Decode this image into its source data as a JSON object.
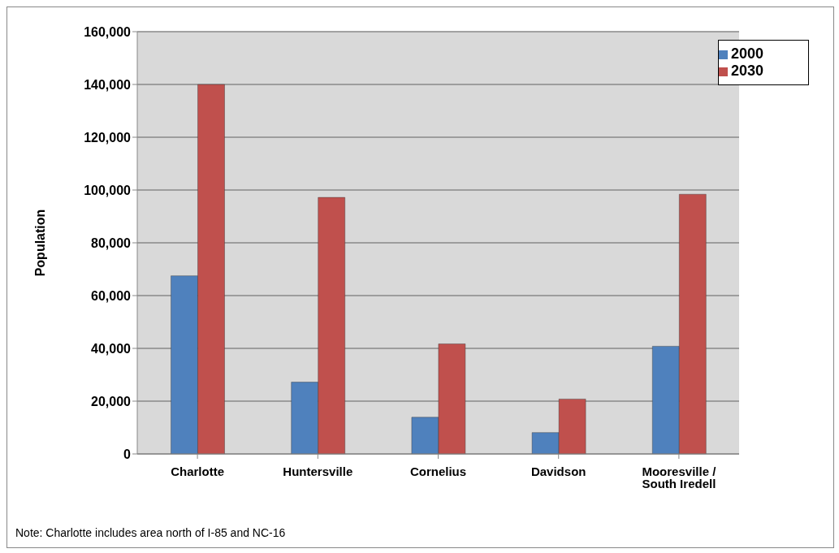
{
  "chart_data": {
    "type": "bar",
    "ylabel": "Population",
    "categories": [
      "Charlotte",
      "Huntersville",
      "Cornelius",
      "Davidson",
      "Mooresville / South Iredell"
    ],
    "series": [
      {
        "name": "2000",
        "color": "#4f81bd",
        "values": [
          67500,
          27200,
          13900,
          8100,
          40800
        ]
      },
      {
        "name": "2030",
        "color": "#c0504d",
        "values": [
          140000,
          97200,
          41700,
          20800,
          98400
        ]
      }
    ],
    "ylim": [
      0,
      160000
    ],
    "yticks": [
      0,
      {
        "value": 20000,
        "label": "20,000"
      },
      {
        "value": 40000,
        "label": "40,000"
      },
      {
        "value": 60000,
        "label": "60,000"
      },
      {
        "value": 80000,
        "label": "80,000"
      },
      {
        "value": 100000,
        "label": "100,000"
      },
      {
        "value": 120000,
        "label": "120,000"
      },
      {
        "value": 140000,
        "label": "140,000"
      },
      {
        "value": 160000,
        "label": "160,000"
      }
    ],
    "grid": "y",
    "legend": "top right",
    "annotations": [
      "Note:  Charlotte includes area north of I-85 and NC-16"
    ]
  }
}
